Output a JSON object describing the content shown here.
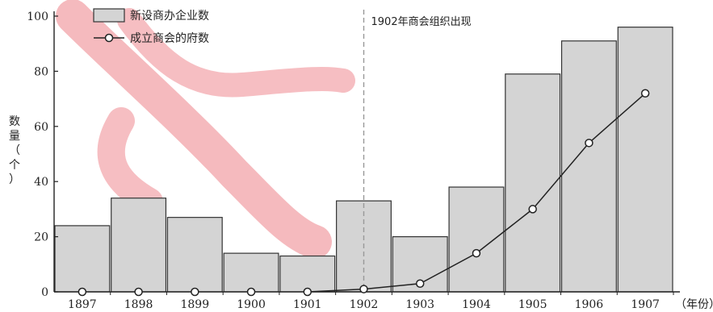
{
  "chart_data": {
    "type": "bar",
    "categories": [
      "1897",
      "1898",
      "1899",
      "1900",
      "1901",
      "1902",
      "1903",
      "1904",
      "1905",
      "1906",
      "1907"
    ],
    "series": [
      {
        "name": "新设商办企业数",
        "type": "bar",
        "values": [
          24,
          34,
          27,
          14,
          13,
          33,
          20,
          38,
          79,
          91,
          96
        ]
      },
      {
        "name": "成立商会的府数",
        "type": "line",
        "values": [
          0,
          0,
          0,
          0,
          0,
          1,
          3,
          14,
          30,
          54,
          72
        ]
      }
    ],
    "ylabel": "数量（个）",
    "xlabel": "（年份）",
    "ylim": [
      0,
      100
    ],
    "yticks": [
      0,
      20,
      40,
      60,
      80,
      100
    ],
    "annotation": {
      "text": "1902年商会组织出现",
      "at_category": "1902"
    },
    "legend_position": "top-left",
    "colors": {
      "bar_fill": "#d4d4d4",
      "bar_stroke": "#333333",
      "line": "#222222",
      "dashed": "#999999",
      "watermark": "#f2a3a8"
    }
  }
}
